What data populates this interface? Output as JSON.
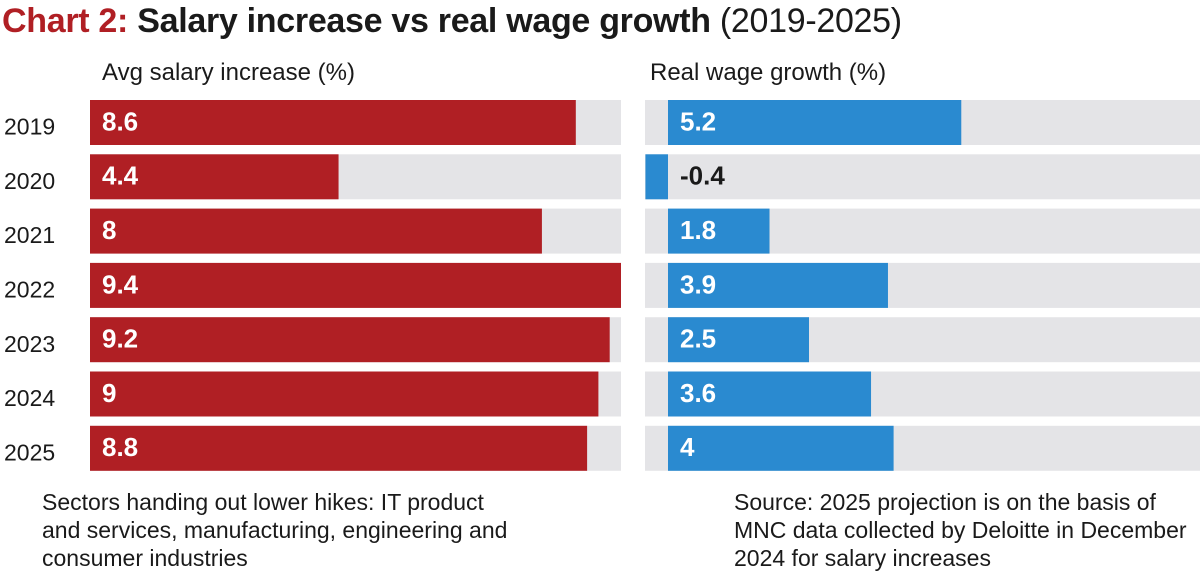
{
  "title": {
    "lead": "Chart 2:",
    "main": "Salary increase vs real wage growth",
    "years": "(2019-2025)"
  },
  "colors": {
    "salary_bar": "#b01f24",
    "real_bar": "#2a8ad0",
    "track": "#e4e4e7",
    "label_light": "#ffffff",
    "label_dark": "#1a1a1a"
  },
  "chart_data": [
    {
      "type": "bar",
      "orientation": "horizontal",
      "title": "Avg salary increase (%)",
      "categories": [
        "2019",
        "2020",
        "2021",
        "2022",
        "2023",
        "2024",
        "2025"
      ],
      "values": [
        8.6,
        4.4,
        8,
        9.4,
        9.2,
        9,
        8.8
      ],
      "xlim": [
        0,
        9.4
      ],
      "grid": false,
      "data_labels": true
    },
    {
      "type": "bar",
      "orientation": "horizontal",
      "title": "Real wage growth (%)",
      "categories": [
        "2019",
        "2020",
        "2021",
        "2022",
        "2023",
        "2024",
        "2025"
      ],
      "values": [
        5.2,
        -0.4,
        1.8,
        3.9,
        2.5,
        3.6,
        4
      ],
      "grid": false,
      "data_labels": true
    }
  ],
  "notes": {
    "left": "Sectors handing out lower hikes: IT product and services, manufacturing, engineering and consumer industries",
    "right": "Source: 2025 projection is on the basis of MNC data collected by Deloitte in December 2024 for salary increases"
  }
}
